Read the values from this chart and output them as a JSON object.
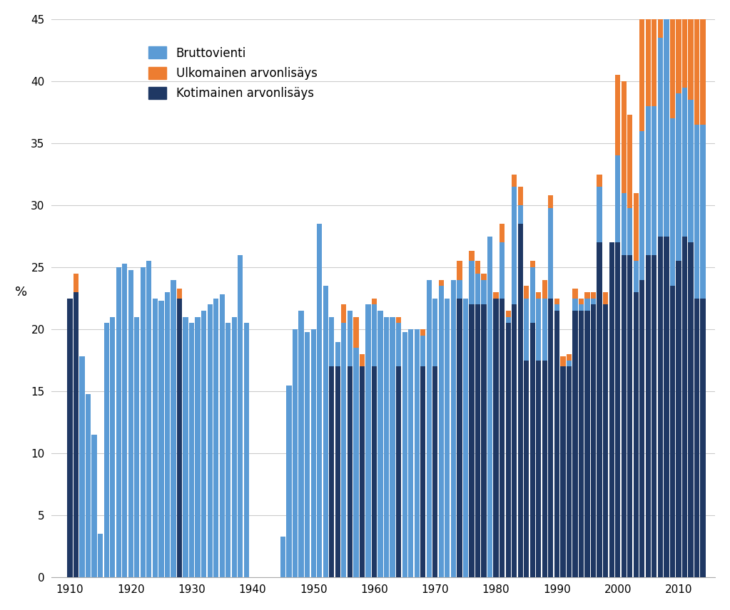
{
  "title": "",
  "ylabel": "%",
  "background_color": "#ffffff",
  "grid_color": "#cccccc",
  "color_brutto": "#5B9BD5",
  "color_ulkomainen": "#ED7D31",
  "color_kotimainen": "#1F3864",
  "legend_labels": [
    "Bruttovienti",
    "Ulkomainen arvonlisäys",
    "Kotimainen arvonlisäys"
  ],
  "ylim": [
    0,
    45
  ],
  "yticks": [
    0,
    5,
    10,
    15,
    20,
    25,
    30,
    35,
    40,
    45
  ],
  "years": [
    1910,
    1911,
    1912,
    1913,
    1914,
    1915,
    1916,
    1917,
    1918,
    1919,
    1920,
    1921,
    1922,
    1923,
    1924,
    1925,
    1926,
    1927,
    1928,
    1929,
    1930,
    1931,
    1932,
    1933,
    1934,
    1935,
    1936,
    1937,
    1938,
    1939,
    1945,
    1946,
    1947,
    1948,
    1949,
    1950,
    1951,
    1952,
    1953,
    1954,
    1955,
    1956,
    1957,
    1958,
    1959,
    1960,
    1961,
    1962,
    1963,
    1964,
    1965,
    1966,
    1967,
    1968,
    1969,
    1970,
    1971,
    1972,
    1973,
    1974,
    1975,
    1976,
    1977,
    1978,
    1979,
    1980,
    1981,
    1982,
    1983,
    1984,
    1985,
    1986,
    1987,
    1988,
    1989,
    1990,
    1991,
    1992,
    1993,
    1994,
    1995,
    1996,
    1997,
    1998,
    1999,
    2000,
    2001,
    2002,
    2003,
    2004,
    2005,
    2006,
    2007,
    2008,
    2009,
    2010,
    2011,
    2012,
    2013,
    2014
  ],
  "brutto": [
    21.5,
    22.0,
    17.8,
    14.8,
    11.5,
    3.5,
    20.5,
    21.0,
    25.0,
    25.3,
    24.8,
    21.0,
    25.0,
    25.5,
    22.5,
    22.3,
    23.0,
    24.0,
    22.5,
    21.0,
    20.5,
    21.0,
    21.5,
    22.0,
    22.5,
    22.8,
    20.5,
    21.0,
    26.0,
    20.5,
    3.3,
    15.5,
    20.0,
    21.5,
    19.8,
    20.0,
    28.5,
    23.5,
    21.0,
    19.0,
    20.5,
    21.5,
    18.5,
    17.0,
    22.0,
    22.0,
    21.5,
    21.0,
    21.0,
    20.5,
    19.8,
    20.0,
    20.0,
    19.5,
    24.0,
    22.5,
    23.5,
    22.5,
    24.0,
    24.0,
    22.5,
    25.5,
    24.5,
    24.0,
    27.5,
    22.5,
    27.0,
    21.0,
    31.5,
    30.0,
    22.5,
    25.0,
    22.5,
    22.5,
    29.8,
    22.0,
    17.0,
    17.5,
    22.5,
    22.0,
    22.5,
    22.5,
    31.5,
    22.0,
    25.5,
    34.0,
    31.0,
    29.8,
    25.5,
    36.0,
    38.0,
    38.0,
    43.5,
    45.0,
    37.0,
    39.0,
    39.5,
    38.5,
    36.5,
    36.5
  ],
  "ulkomainen": [
    0.0,
    2.5,
    0.0,
    0.0,
    0.0,
    0.0,
    0.0,
    0.0,
    0.0,
    0.0,
    0.0,
    0.0,
    0.0,
    0.0,
    0.0,
    0.0,
    0.0,
    0.0,
    0.8,
    0.0,
    0.0,
    0.0,
    0.0,
    0.0,
    0.0,
    0.0,
    0.0,
    0.0,
    0.0,
    0.0,
    0.0,
    0.0,
    0.0,
    0.0,
    0.0,
    0.0,
    0.0,
    0.0,
    0.0,
    0.0,
    1.5,
    0.0,
    2.5,
    1.0,
    0.0,
    0.5,
    0.0,
    0.0,
    0.0,
    0.5,
    0.0,
    0.0,
    0.0,
    0.5,
    0.0,
    0.0,
    0.5,
    0.0,
    0.0,
    1.5,
    0.0,
    0.8,
    1.0,
    0.5,
    0.0,
    0.5,
    1.5,
    0.5,
    1.0,
    1.5,
    1.0,
    0.5,
    0.5,
    1.5,
    1.0,
    0.5,
    0.8,
    0.5,
    0.8,
    0.5,
    0.5,
    0.5,
    1.0,
    1.0,
    1.0,
    6.5,
    9.0,
    7.5,
    5.5,
    13.5,
    15.5,
    16.0,
    19.5,
    22.5,
    14.5,
    16.5,
    16.5,
    15.5,
    14.0,
    14.5
  ],
  "kotimainen": [
    22.5,
    23.0,
    0.0,
    0.0,
    0.0,
    0.0,
    0.0,
    0.0,
    0.0,
    0.0,
    0.0,
    0.0,
    0.0,
    0.0,
    0.0,
    0.0,
    0.0,
    0.0,
    22.5,
    0.0,
    0.0,
    0.0,
    0.0,
    0.0,
    0.0,
    0.0,
    0.0,
    0.0,
    0.0,
    0.0,
    0.0,
    0.0,
    0.0,
    0.0,
    0.0,
    0.0,
    0.0,
    0.0,
    17.0,
    17.0,
    0.0,
    17.0,
    0.0,
    17.0,
    0.0,
    17.0,
    0.0,
    0.0,
    0.0,
    17.0,
    0.0,
    0.0,
    0.0,
    17.0,
    0.0,
    17.0,
    0.0,
    0.0,
    0.0,
    22.5,
    0.0,
    22.0,
    22.0,
    22.0,
    0.0,
    22.5,
    22.5,
    20.5,
    22.0,
    28.5,
    17.5,
    20.5,
    17.5,
    17.5,
    22.5,
    21.5,
    17.0,
    17.0,
    21.5,
    21.5,
    21.5,
    22.0,
    27.0,
    22.0,
    27.0,
    27.0,
    26.0,
    26.0,
    23.0,
    24.0,
    26.0,
    26.0,
    27.5,
    27.5,
    23.5,
    25.5,
    27.5,
    27.0,
    22.5,
    22.5
  ]
}
